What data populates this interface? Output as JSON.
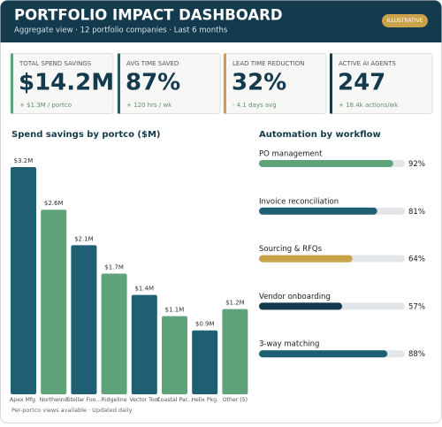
{
  "header": {
    "title": "PORTFOLIO IMPACT DASHBOARD",
    "subtitle": "Aggregate view  ·  12 portfolio companies  ·  Last 6 months",
    "badge": "ILLUSTRATIVE"
  },
  "kpis": [
    {
      "label": "TOTAL SPEND SAVINGS",
      "value": "$14.2M",
      "note": "+ $1.3M / portco",
      "color": "#5fa37a"
    },
    {
      "label": "AVG TIME SAVED",
      "value": "87%",
      "note": "+ 120 hrs / wk",
      "color": "#1f5f73"
    },
    {
      "label": "LEAD TIME REDUCTION",
      "value": "32%",
      "note": "- 4.1 days avg",
      "color": "#c9a24a"
    },
    {
      "label": "ACTIVE AI AGENTS",
      "value": "247",
      "note": "+ 18.4k actions/wk",
      "color": "#143a4e"
    }
  ],
  "chart_data": [
    {
      "type": "bar",
      "title": "Spend savings by portco  ($M)",
      "categories": [
        "Apex Mfg.",
        "Northwind",
        "Stellar Foo...",
        "Ridgeline",
        "Vector Tool",
        "Coastal Par...",
        "Helix Pkg.",
        "Other (5)"
      ],
      "values": [
        3.2,
        2.6,
        2.1,
        1.7,
        1.4,
        1.1,
        0.9,
        1.2
      ],
      "value_labels": [
        "$3.2M",
        "$2.6M",
        "$2.1M",
        "$1.7M",
        "$1.4M",
        "$1.1M",
        "$0.9M",
        "$1.2M"
      ],
      "colors": [
        "#1f5f73",
        "#5fa37a",
        "#1f5f73",
        "#5fa37a",
        "#1f5f73",
        "#5fa37a",
        "#1f5f73",
        "#5fa37a"
      ],
      "ylim": [
        0,
        3.2
      ],
      "footnote": "Per-portco views available  ·  Updated daily"
    },
    {
      "type": "progress",
      "title": "Automation by workflow",
      "categories": [
        "PO management",
        "Invoice reconciliation",
        "Sourcing & RFQs",
        "Vendor onboarding",
        "3-way matching"
      ],
      "values": [
        92,
        81,
        64,
        57,
        88
      ],
      "value_labels": [
        "92%",
        "81%",
        "64%",
        "57%",
        "88%"
      ],
      "colors": [
        "#5fa37a",
        "#1f5f73",
        "#c9a24a",
        "#143a4e",
        "#1f5f73"
      ],
      "xlim": [
        0,
        100
      ]
    }
  ]
}
